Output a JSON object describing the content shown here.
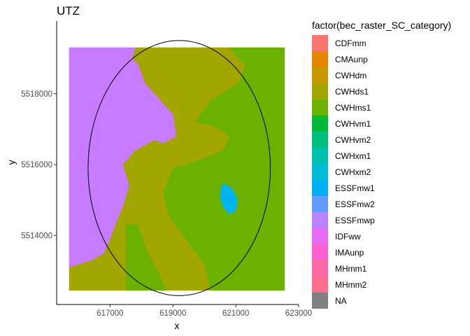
{
  "chart_data": {
    "type": "heatmap",
    "title": "UTZ",
    "xlabel": "x",
    "ylabel": "y",
    "xlim": [
      615300,
      623000
    ],
    "ylim": [
      5512050,
      5520050
    ],
    "x_ticks": [
      617000,
      619000,
      621000,
      623000
    ],
    "x_tick_labels": [
      "617000",
      "619000",
      "621000",
      "623000"
    ],
    "y_ticks": [
      5514000,
      5516000,
      5518000
    ],
    "y_tick_labels": [
      "5514000",
      "5516000",
      "5518000"
    ],
    "grid": false,
    "legend_position": "right",
    "legend_title": "factor(bec_raster_SC_category)",
    "raster_extent": {
      "x": [
        615700,
        622550
      ],
      "y": [
        5512450,
        5519300
      ]
    },
    "regions": [
      {
        "category": "CWHds1",
        "polygon": [
          [
            615700,
            5513100
          ],
          [
            616500,
            5513300
          ],
          [
            617200,
            5513500
          ],
          [
            617600,
            5514100
          ],
          [
            617700,
            5515000
          ],
          [
            617500,
            5515500
          ],
          [
            617600,
            5516200
          ],
          [
            618500,
            5516650
          ],
          [
            619000,
            5516800
          ],
          [
            619300,
            5517100
          ],
          [
            619400,
            5517700
          ],
          [
            619000,
            5517700
          ],
          [
            618600,
            5518200
          ],
          [
            618300,
            5518500
          ],
          [
            618200,
            5519000
          ],
          [
            617900,
            5519300
          ],
          [
            619800,
            5519300
          ],
          [
            620900,
            5519300
          ],
          [
            621300,
            5519000
          ],
          [
            621000,
            5518500
          ],
          [
            620200,
            5518000
          ],
          [
            619500,
            5517500
          ],
          [
            619700,
            5517000
          ],
          [
            620100,
            5516500
          ],
          [
            620500,
            5516200
          ],
          [
            620200,
            5516000
          ],
          [
            619400,
            5516100
          ],
          [
            618700,
            5515800
          ],
          [
            618600,
            5515400
          ],
          [
            618900,
            5514600
          ],
          [
            619400,
            5513900
          ],
          [
            620000,
            5513500
          ],
          [
            620200,
            5513000
          ],
          [
            620700,
            5512450
          ],
          [
            615700,
            5512450
          ]
        ]
      },
      {
        "category": "CWHms1",
        "polygon": [
          [
            617500,
            5512450
          ],
          [
            617500,
            5513500
          ],
          [
            617500,
            5514300
          ],
          [
            617900,
            5514300
          ],
          [
            618100,
            5513700
          ],
          [
            618500,
            5513000
          ],
          [
            618800,
            5512450
          ]
        ]
      },
      {
        "category": "CWHms1",
        "polygon": [
          [
            620800,
            5519300
          ],
          [
            622550,
            5519300
          ],
          [
            622550,
            5512450
          ],
          [
            620200,
            5512450
          ],
          [
            620000,
            5513200
          ],
          [
            619400,
            5513900
          ],
          [
            618900,
            5514500
          ],
          [
            618700,
            5515200
          ],
          [
            619000,
            5515900
          ],
          [
            619800,
            5516100
          ],
          [
            620600,
            5516400
          ],
          [
            620800,
            5516800
          ],
          [
            620300,
            5517100
          ],
          [
            619700,
            5517200
          ],
          [
            620200,
            5517800
          ],
          [
            621100,
            5518300
          ],
          [
            621300,
            5518800
          ]
        ]
      },
      {
        "category": "IDFww",
        "polygon": [
          [
            615700,
            5519300
          ],
          [
            617800,
            5519300
          ],
          [
            617700,
            5519000
          ],
          [
            617900,
            5518800
          ],
          [
            618100,
            5518300
          ],
          [
            618500,
            5517900
          ],
          [
            618800,
            5517600
          ],
          [
            619000,
            5517400
          ],
          [
            619100,
            5516800
          ],
          [
            618700,
            5516600
          ],
          [
            618400,
            5516700
          ],
          [
            617800,
            5516400
          ],
          [
            617400,
            5516000
          ],
          [
            617600,
            5515400
          ],
          [
            617400,
            5514800
          ],
          [
            617200,
            5514400
          ],
          [
            617000,
            5513900
          ],
          [
            616800,
            5513500
          ],
          [
            616400,
            5513300
          ],
          [
            615700,
            5513100
          ]
        ]
      },
      {
        "category": "ESSFmw1",
        "polygon": [
          [
            620650,
            5515450
          ],
          [
            620900,
            5515300
          ],
          [
            621050,
            5515000
          ],
          [
            621000,
            5514700
          ],
          [
            620800,
            5514600
          ],
          [
            620600,
            5514800
          ],
          [
            620500,
            5515100
          ],
          [
            620550,
            5515400
          ]
        ]
      }
    ],
    "overlay": {
      "type": "ellipse",
      "center": [
        619200,
        5515900
      ],
      "radii": [
        2900,
        3600
      ]
    },
    "legend": [
      {
        "label": "CDFmm",
        "color": "#F8766D"
      },
      {
        "label": "CMAunp",
        "color": "#E58700"
      },
      {
        "label": "CWHdm",
        "color": "#C99800"
      },
      {
        "label": "CWHds1",
        "color": "#A3A500"
      },
      {
        "label": "CWHms1",
        "color": "#6BB100"
      },
      {
        "label": "CWHvm1",
        "color": "#00BA38"
      },
      {
        "label": "CWHvm2",
        "color": "#00BF7D"
      },
      {
        "label": "CWHxm1",
        "color": "#00C0AF"
      },
      {
        "label": "CWHxm2",
        "color": "#00BCD8"
      },
      {
        "label": "ESSFmw1",
        "color": "#00B0F6"
      },
      {
        "label": "ESSFmw2",
        "color": "#619CFF"
      },
      {
        "label": "ESSFmwp",
        "color": "#B983FF"
      },
      {
        "label": "IDFww",
        "color": "#E76BF3"
      },
      {
        "label": "IMAunp",
        "color": "#FD61D1"
      },
      {
        "label": "MHmm1",
        "color": "#FF67A4"
      },
      {
        "label": "MHmm2",
        "color": "#FF6C91"
      },
      {
        "label": "NA",
        "color": "#7F7F7F"
      }
    ],
    "render_colors": {
      "CWHds1": "#A3A500",
      "CWHms1": "#6BB100",
      "IDFww": "#C77CFF",
      "ESSFmw1": "#00B4F0",
      "NA": "#808080"
    }
  }
}
